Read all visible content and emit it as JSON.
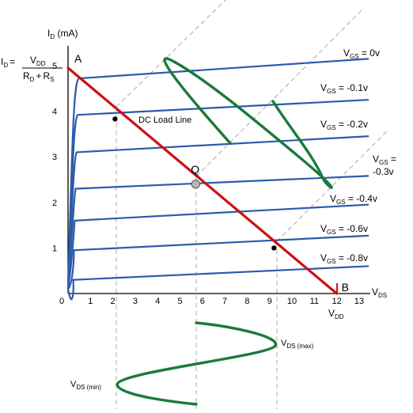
{
  "chart_data": {
    "type": "line",
    "y_axis_label": "mA",
    "x_axis_label": "DS",
    "x_ticks": [
      "0",
      "1",
      "2",
      "3",
      "4",
      "5",
      "6",
      "7",
      "8",
      "9",
      "10",
      "11",
      "12",
      "13"
    ],
    "y_ticks": [
      "1",
      "2",
      "3",
      "4",
      "5"
    ],
    "x_range": [
      0,
      13.5
    ],
    "y_range": [
      0,
      5.8
    ],
    "curves": [
      {
        "gate_label": "= 0v",
        "saturation_mA": 4.72,
        "end_mA": 5.15
      },
      {
        "gate_label": "= -0.1v",
        "saturation_mA": 3.92,
        "end_mA": 4.25
      },
      {
        "gate_label": "= -0.2v",
        "saturation_mA": 3.1,
        "end_mA": 3.45
      },
      {
        "gate_label": "=",
        "gate_label_2": "-0.3v",
        "saturation_mA": 2.3,
        "end_mA": 2.58
      },
      {
        "gate_label": "= -0.4v",
        "saturation_mA": 1.6,
        "end_mA": 1.95
      },
      {
        "gate_label": "= -0.6v",
        "saturation_mA": 0.95,
        "end_mA": 1.27
      },
      {
        "gate_label": "= -0.8v",
        "saturation_mA": 0.3,
        "end_mA": 0.6
      }
    ],
    "load_line": {
      "label": "DC Load Line",
      "x": [
        0,
        12
      ],
      "y": [
        4.95,
        0
      ]
    },
    "points": {
      "A": {
        "label": "A",
        "x": 0,
        "y": 4.95
      },
      "B": {
        "label": "B",
        "x": 12,
        "y": 0
      },
      "Q": {
        "label": "Q",
        "x": 5.7,
        "y": 2.4
      }
    },
    "intersections": [
      {
        "x": 2.1,
        "y": 3.83
      },
      {
        "x": 9.2,
        "y": 1.0
      }
    ],
    "vdd_label": "DD",
    "id_formula": {
      "lhs_sub": "D",
      "numerator_sub": "DD",
      "denominator_sub_1": "D",
      "plus": "+",
      "denominator_sub_2": "S"
    },
    "vds_max_label": "DS (max)",
    "vds_min_label": "DS (min)",
    "letters": {
      "I": "I",
      "V": "V",
      "R": "R",
      "eq": "=",
      "gs": "GS"
    },
    "colors": {
      "curve": "#2b5caa",
      "load_line": "#cc1111",
      "wave": "#1a7a3a",
      "guide": "#a8a8a8",
      "point_label": "#cc1111",
      "q_label": "#2b5caa"
    }
  }
}
